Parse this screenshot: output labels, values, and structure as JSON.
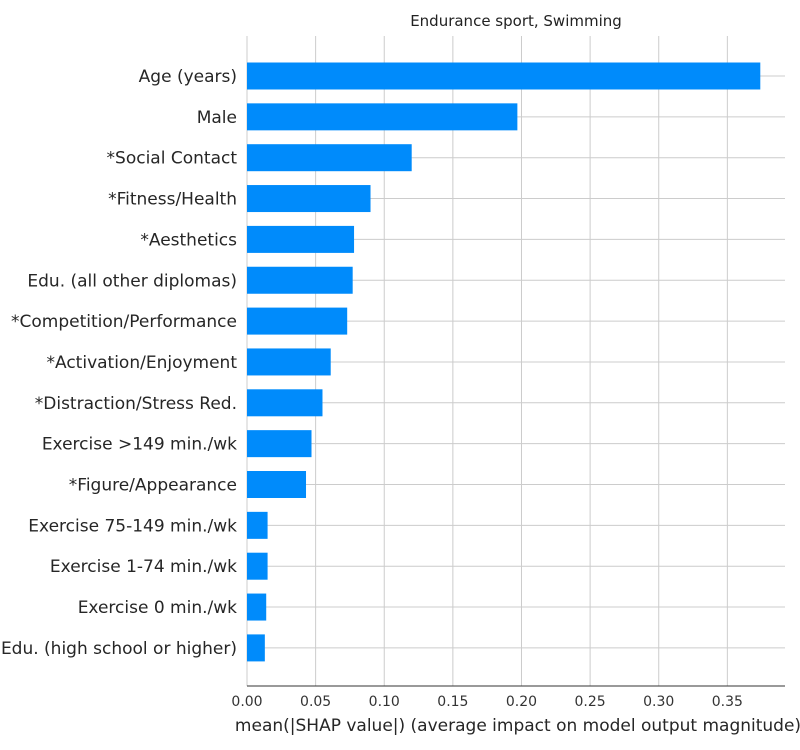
{
  "chart_data": {
    "type": "bar",
    "orientation": "horizontal",
    "title": "Endurance sport, Swimming",
    "xlabel": "mean(|SHAP value|) (average impact on model output magnitude)",
    "ylabel": "",
    "xlim": [
      0,
      0.392
    ],
    "xticks": [
      "0.00",
      "0.05",
      "0.10",
      "0.15",
      "0.20",
      "0.25",
      "0.30",
      "0.35"
    ],
    "xtick_values": [
      0,
      0.05,
      0.1,
      0.15,
      0.2,
      0.25,
      0.3,
      0.35
    ],
    "grid": "vertical",
    "bar_color": "#008bfb",
    "categories": [
      "Age (years)",
      "Male",
      "*Social Contact",
      "*Fitness/Health",
      "*Aesthetics",
      "Edu. (all other diplomas)",
      "*Competition/Performance",
      "*Activation/Enjoyment",
      "*Distraction/Stress Red.",
      "Exercise >149 min./wk",
      "*Figure/Appearance",
      "Exercise 75-149 min./wk",
      "Exercise 1-74 min./wk",
      "Exercise 0 min./wk",
      "Edu. (high school or higher)"
    ],
    "values": [
      0.374,
      0.197,
      0.12,
      0.09,
      0.078,
      0.077,
      0.073,
      0.061,
      0.055,
      0.047,
      0.043,
      0.015,
      0.015,
      0.014,
      0.013
    ]
  }
}
